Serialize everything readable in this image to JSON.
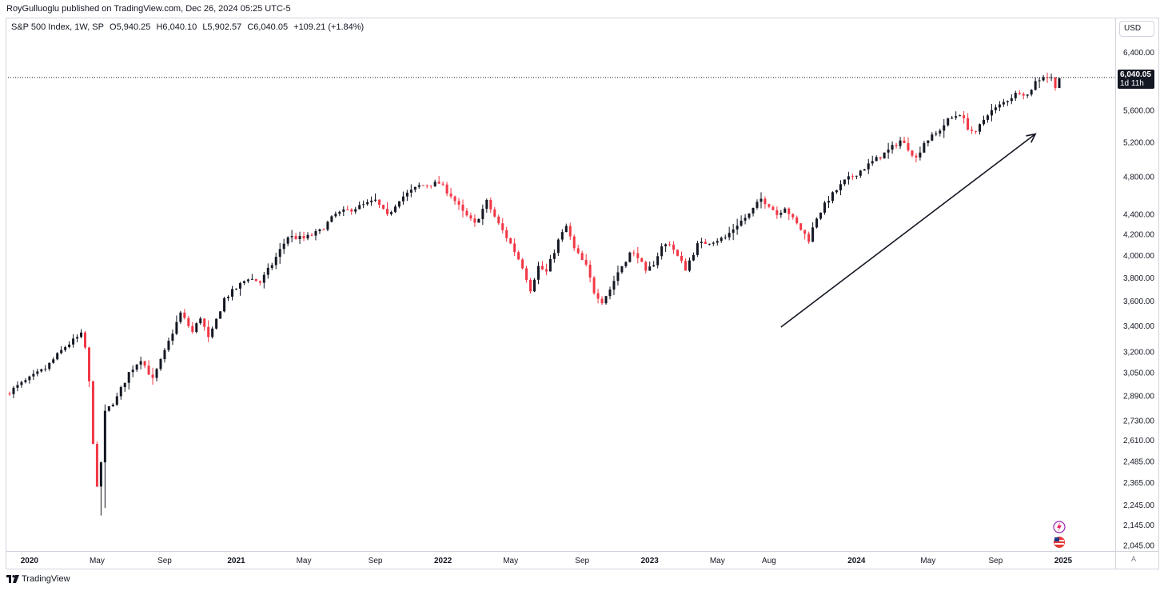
{
  "publisher_line": "RoyGulluoglu published on TradingView.com, Dec 26, 2024 05:25 UTC-5",
  "legend": {
    "symbol": "S&P 500 Index, 1W, SP",
    "open": "O5,940.25",
    "high": "H6,040.10",
    "low": "L5,902.57",
    "close": "C6,040.05",
    "change": "+109.21 (+1.84%)"
  },
  "currency": "USD",
  "last_price": {
    "value": "6,040.05",
    "countdown": "1d 11h"
  },
  "auto_scale": "A",
  "footer_brand": "TradingView",
  "colors": {
    "up": "#131722",
    "down": "#f23645",
    "grid": "#ffffff",
    "text": "#131722",
    "border": "#d1d4dc"
  },
  "chart_data": {
    "type": "candlestick",
    "scale": "log",
    "interval": "1W",
    "ylim": [
      1960,
      6900
    ],
    "y_ticks": [
      6400,
      5600,
      5200,
      4800,
      4400,
      4200,
      4000,
      3800,
      3600,
      3400,
      3200,
      3050,
      2890,
      2730,
      2610,
      2485,
      2365,
      2245,
      2145,
      2045
    ],
    "y_tick_labels": [
      "6,400.00",
      "5,600.00",
      "5,200.00",
      "4,800.00",
      "4,400.00",
      "4,200.00",
      "4,000.00",
      "3,800.00",
      "3,600.00",
      "3,400.00",
      "3,200.00",
      "3,050.00",
      "2,890.00",
      "2,730.00",
      "2,610.00",
      "2,485.00",
      "2,365.00",
      "2,245.00",
      "2,145.00",
      "2,045.00"
    ],
    "x_ticks": [
      {
        "label": "2020",
        "week": 5,
        "year": true
      },
      {
        "label": "May",
        "week": 22,
        "year": false
      },
      {
        "label": "Sep",
        "week": 39,
        "year": false
      },
      {
        "label": "2021",
        "week": 57,
        "year": true
      },
      {
        "label": "May",
        "week": 74,
        "year": false
      },
      {
        "label": "Sep",
        "week": 92,
        "year": false
      },
      {
        "label": "2022",
        "week": 109,
        "year": true
      },
      {
        "label": "May",
        "week": 126,
        "year": false
      },
      {
        "label": "Sep",
        "week": 144,
        "year": false
      },
      {
        "label": "2023",
        "week": 161,
        "year": true
      },
      {
        "label": "May",
        "week": 178,
        "year": false
      },
      {
        "label": "Aug",
        "week": 191,
        "year": false
      },
      {
        "label": "2024",
        "week": 213,
        "year": true
      },
      {
        "label": "May",
        "week": 231,
        "year": false
      },
      {
        "label": "Sep",
        "week": 248,
        "year": false
      },
      {
        "label": "2025",
        "week": 265,
        "year": true
      }
    ],
    "waypoints": [
      [
        0,
        2920
      ],
      [
        9,
        3080
      ],
      [
        14,
        3240
      ],
      [
        18,
        3330
      ],
      [
        19,
        3230
      ],
      [
        20,
        2980
      ],
      [
        21,
        2600
      ],
      [
        22,
        2330
      ],
      [
        23,
        2480
      ],
      [
        24,
        2780
      ],
      [
        27,
        2880
      ],
      [
        30,
        3050
      ],
      [
        33,
        3150
      ],
      [
        36,
        3000
      ],
      [
        39,
        3200
      ],
      [
        43,
        3500
      ],
      [
        46,
        3350
      ],
      [
        48,
        3470
      ],
      [
        50,
        3300
      ],
      [
        51,
        3360
      ],
      [
        54,
        3620
      ],
      [
        60,
        3800
      ],
      [
        63,
        3760
      ],
      [
        66,
        3920
      ],
      [
        70,
        4180
      ],
      [
        74,
        4160
      ],
      [
        78,
        4230
      ],
      [
        82,
        4400
      ],
      [
        88,
        4480
      ],
      [
        92,
        4540
      ],
      [
        95,
        4380
      ],
      [
        98,
        4560
      ],
      [
        103,
        4700
      ],
      [
        108,
        4730
      ],
      [
        111,
        4600
      ],
      [
        114,
        4420
      ],
      [
        117,
        4300
      ],
      [
        120,
        4530
      ],
      [
        123,
        4300
      ],
      [
        126,
        4110
      ],
      [
        129,
        3900
      ],
      [
        131,
        3700
      ],
      [
        133,
        3900
      ],
      [
        135,
        3850
      ],
      [
        138,
        4140
      ],
      [
        140,
        4280
      ],
      [
        142,
        4060
      ],
      [
        145,
        3900
      ],
      [
        147,
        3680
      ],
      [
        149,
        3600
      ],
      [
        151,
        3700
      ],
      [
        153,
        3850
      ],
      [
        156,
        4020
      ],
      [
        158,
        4000
      ],
      [
        160,
        3840
      ],
      [
        162,
        3930
      ],
      [
        164,
        4080
      ],
      [
        166,
        4120
      ],
      [
        168,
        3990
      ],
      [
        170,
        3880
      ],
      [
        173,
        4100
      ],
      [
        177,
        4140
      ],
      [
        180,
        4170
      ],
      [
        183,
        4300
      ],
      [
        186,
        4400
      ],
      [
        189,
        4560
      ],
      [
        191,
        4500
      ],
      [
        193,
        4400
      ],
      [
        195,
        4480
      ],
      [
        197,
        4350
      ],
      [
        199,
        4250
      ],
      [
        201,
        4150
      ],
      [
        203,
        4370
      ],
      [
        206,
        4560
      ],
      [
        210,
        4750
      ],
      [
        214,
        4870
      ],
      [
        218,
        5000
      ],
      [
        221,
        5100
      ],
      [
        224,
        5220
      ],
      [
        226,
        5130
      ],
      [
        228,
        5010
      ],
      [
        230,
        5200
      ],
      [
        233,
        5300
      ],
      [
        236,
        5470
      ],
      [
        239,
        5560
      ],
      [
        241,
        5380
      ],
      [
        243,
        5300
      ],
      [
        244,
        5400
      ],
      [
        246,
        5560
      ],
      [
        248,
        5620
      ],
      [
        251,
        5740
      ],
      [
        254,
        5850
      ],
      [
        256,
        5800
      ],
      [
        258,
        5980
      ],
      [
        260,
        6060
      ],
      [
        262,
        6030
      ],
      [
        263,
        5930
      ],
      [
        264,
        6040
      ]
    ],
    "lows_highlight": [
      {
        "week": 23,
        "low": 2192
      },
      {
        "week": 24,
        "low": 2230
      }
    ],
    "trendline": {
      "from": {
        "week": 194,
        "price": 3390
      },
      "to": {
        "week": 258,
        "price": 5300
      }
    }
  }
}
